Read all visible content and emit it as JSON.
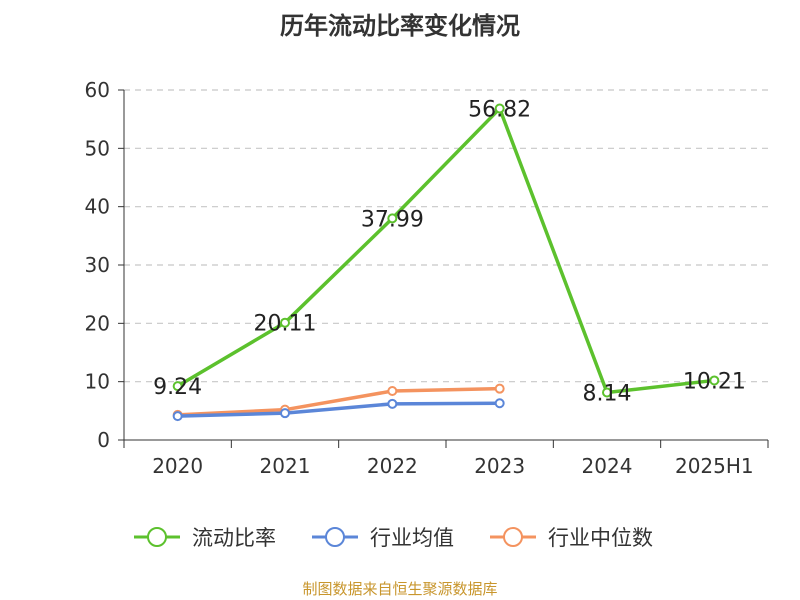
{
  "title": "历年流动比率变化情况",
  "footer": "制图数据来自恒生聚源数据库",
  "chart_data": {
    "type": "line",
    "title": "历年流动比率变化情况",
    "categories": [
      "2020",
      "2021",
      "2022",
      "2023",
      "2024",
      "2025H1"
    ],
    "ylim": [
      0,
      60
    ],
    "yticks": [
      0,
      10,
      20,
      30,
      40,
      50,
      60
    ],
    "grid": true,
    "legend_position": "bottom",
    "series": [
      {
        "name": "流动比率",
        "color": "#5cc12d",
        "values": [
          9.24,
          20.11,
          37.99,
          56.82,
          8.14,
          10.21
        ],
        "labels": [
          "9.24",
          "20.11",
          "37.99",
          "56.82",
          "8.14",
          "10.21"
        ]
      },
      {
        "name": "行业均值",
        "color": "#5b86d8",
        "values": [
          4.1,
          4.6,
          6.2,
          6.3,
          null,
          null
        ]
      },
      {
        "name": "行业中位数",
        "color": "#f4935f",
        "values": [
          4.3,
          5.2,
          8.4,
          8.8,
          null,
          null
        ]
      }
    ]
  }
}
